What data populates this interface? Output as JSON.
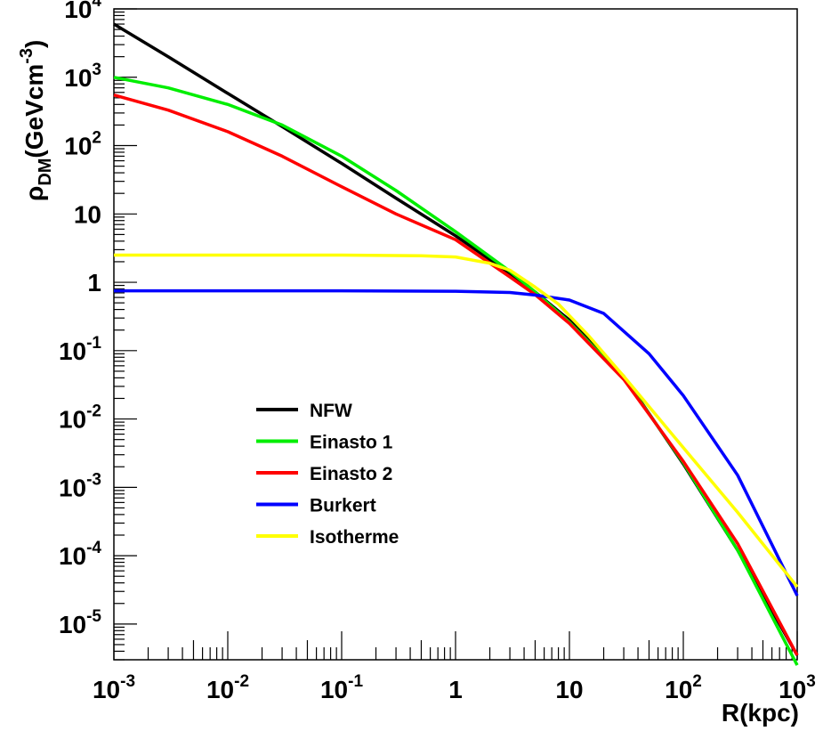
{
  "chart_data": {
    "type": "line",
    "xscale": "log",
    "yscale": "log",
    "xlim": [
      0.001,
      1000
    ],
    "ylim": [
      3e-06,
      10000
    ],
    "xlabel": "R(kpc)",
    "ylabel": {
      "rho": "ρ",
      "sub": "DM",
      "unit": "(GeVcm",
      "sup": "-3",
      "close": ")"
    },
    "x_ticks": [
      {
        "value": 0.001,
        "base": "10",
        "exp": "-3"
      },
      {
        "value": 0.01,
        "base": "10",
        "exp": "-2"
      },
      {
        "value": 0.1,
        "base": "10",
        "exp": "-1"
      },
      {
        "value": 1,
        "base": "1",
        "exp": ""
      },
      {
        "value": 10,
        "base": "10",
        "exp": ""
      },
      {
        "value": 100,
        "base": "10",
        "exp": "2"
      },
      {
        "value": 1000,
        "base": "10",
        "exp": "3"
      }
    ],
    "y_ticks": [
      {
        "value": 1e-05,
        "base": "10",
        "exp": "-5"
      },
      {
        "value": 0.0001,
        "base": "10",
        "exp": "-4"
      },
      {
        "value": 0.001,
        "base": "10",
        "exp": "-3"
      },
      {
        "value": 0.01,
        "base": "10",
        "exp": "-2"
      },
      {
        "value": 0.1,
        "base": "10",
        "exp": "-1"
      },
      {
        "value": 1,
        "base": "1",
        "exp": ""
      },
      {
        "value": 10,
        "base": "10",
        "exp": ""
      },
      {
        "value": 100,
        "base": "10",
        "exp": "2"
      },
      {
        "value": 1000,
        "base": "10",
        "exp": "3"
      },
      {
        "value": 10000,
        "base": "10",
        "exp": "4"
      }
    ],
    "grid": false,
    "legend_position": "left-middle",
    "series": [
      {
        "name": "NFW",
        "color": "#000000",
        "x": [
          0.001,
          0.003,
          0.01,
          0.03,
          0.1,
          0.3,
          1,
          3,
          5,
          10,
          30,
          100,
          300,
          1000
        ],
        "y": [
          6000,
          2000,
          580,
          190,
          55,
          17,
          4.8,
          1.35,
          0.72,
          0.28,
          0.042,
          0.0022,
          0.00012,
          3.5e-06
        ]
      },
      {
        "name": "Einasto 1",
        "color": "#00ee00",
        "x": [
          0.001,
          0.003,
          0.01,
          0.03,
          0.1,
          0.3,
          1,
          3,
          5,
          10,
          30,
          100,
          300,
          1000
        ],
        "y": [
          1000,
          700,
          400,
          200,
          70,
          22,
          5.5,
          1.45,
          0.72,
          0.26,
          0.04,
          0.0023,
          0.00012,
          2.5e-06
        ]
      },
      {
        "name": "Einasto 2",
        "color": "#ff0000",
        "x": [
          0.001,
          0.003,
          0.01,
          0.03,
          0.1,
          0.3,
          1,
          3,
          5,
          10,
          30,
          100,
          300,
          1000
        ],
        "y": [
          550,
          330,
          160,
          70,
          25,
          10,
          4.2,
          1.2,
          0.66,
          0.25,
          0.038,
          0.0024,
          0.00015,
          3.5e-06
        ]
      },
      {
        "name": "Burkert",
        "color": "#0000ff",
        "x": [
          0.001,
          0.01,
          0.1,
          1,
          3,
          5,
          10,
          20,
          50,
          100,
          300,
          1000
        ],
        "y": [
          0.75,
          0.75,
          0.75,
          0.74,
          0.71,
          0.65,
          0.55,
          0.35,
          0.09,
          0.022,
          0.0015,
          2.6e-05
        ]
      },
      {
        "name": "Isotherme",
        "color": "#ffff00",
        "x": [
          0.001,
          0.01,
          0.1,
          0.5,
          1,
          2,
          3,
          5,
          8,
          15,
          30,
          100,
          300,
          1000
        ],
        "y": [
          2.5,
          2.5,
          2.5,
          2.45,
          2.35,
          1.9,
          1.5,
          0.85,
          0.48,
          0.16,
          0.042,
          0.0038,
          0.00043,
          3.5e-05
        ]
      }
    ]
  }
}
